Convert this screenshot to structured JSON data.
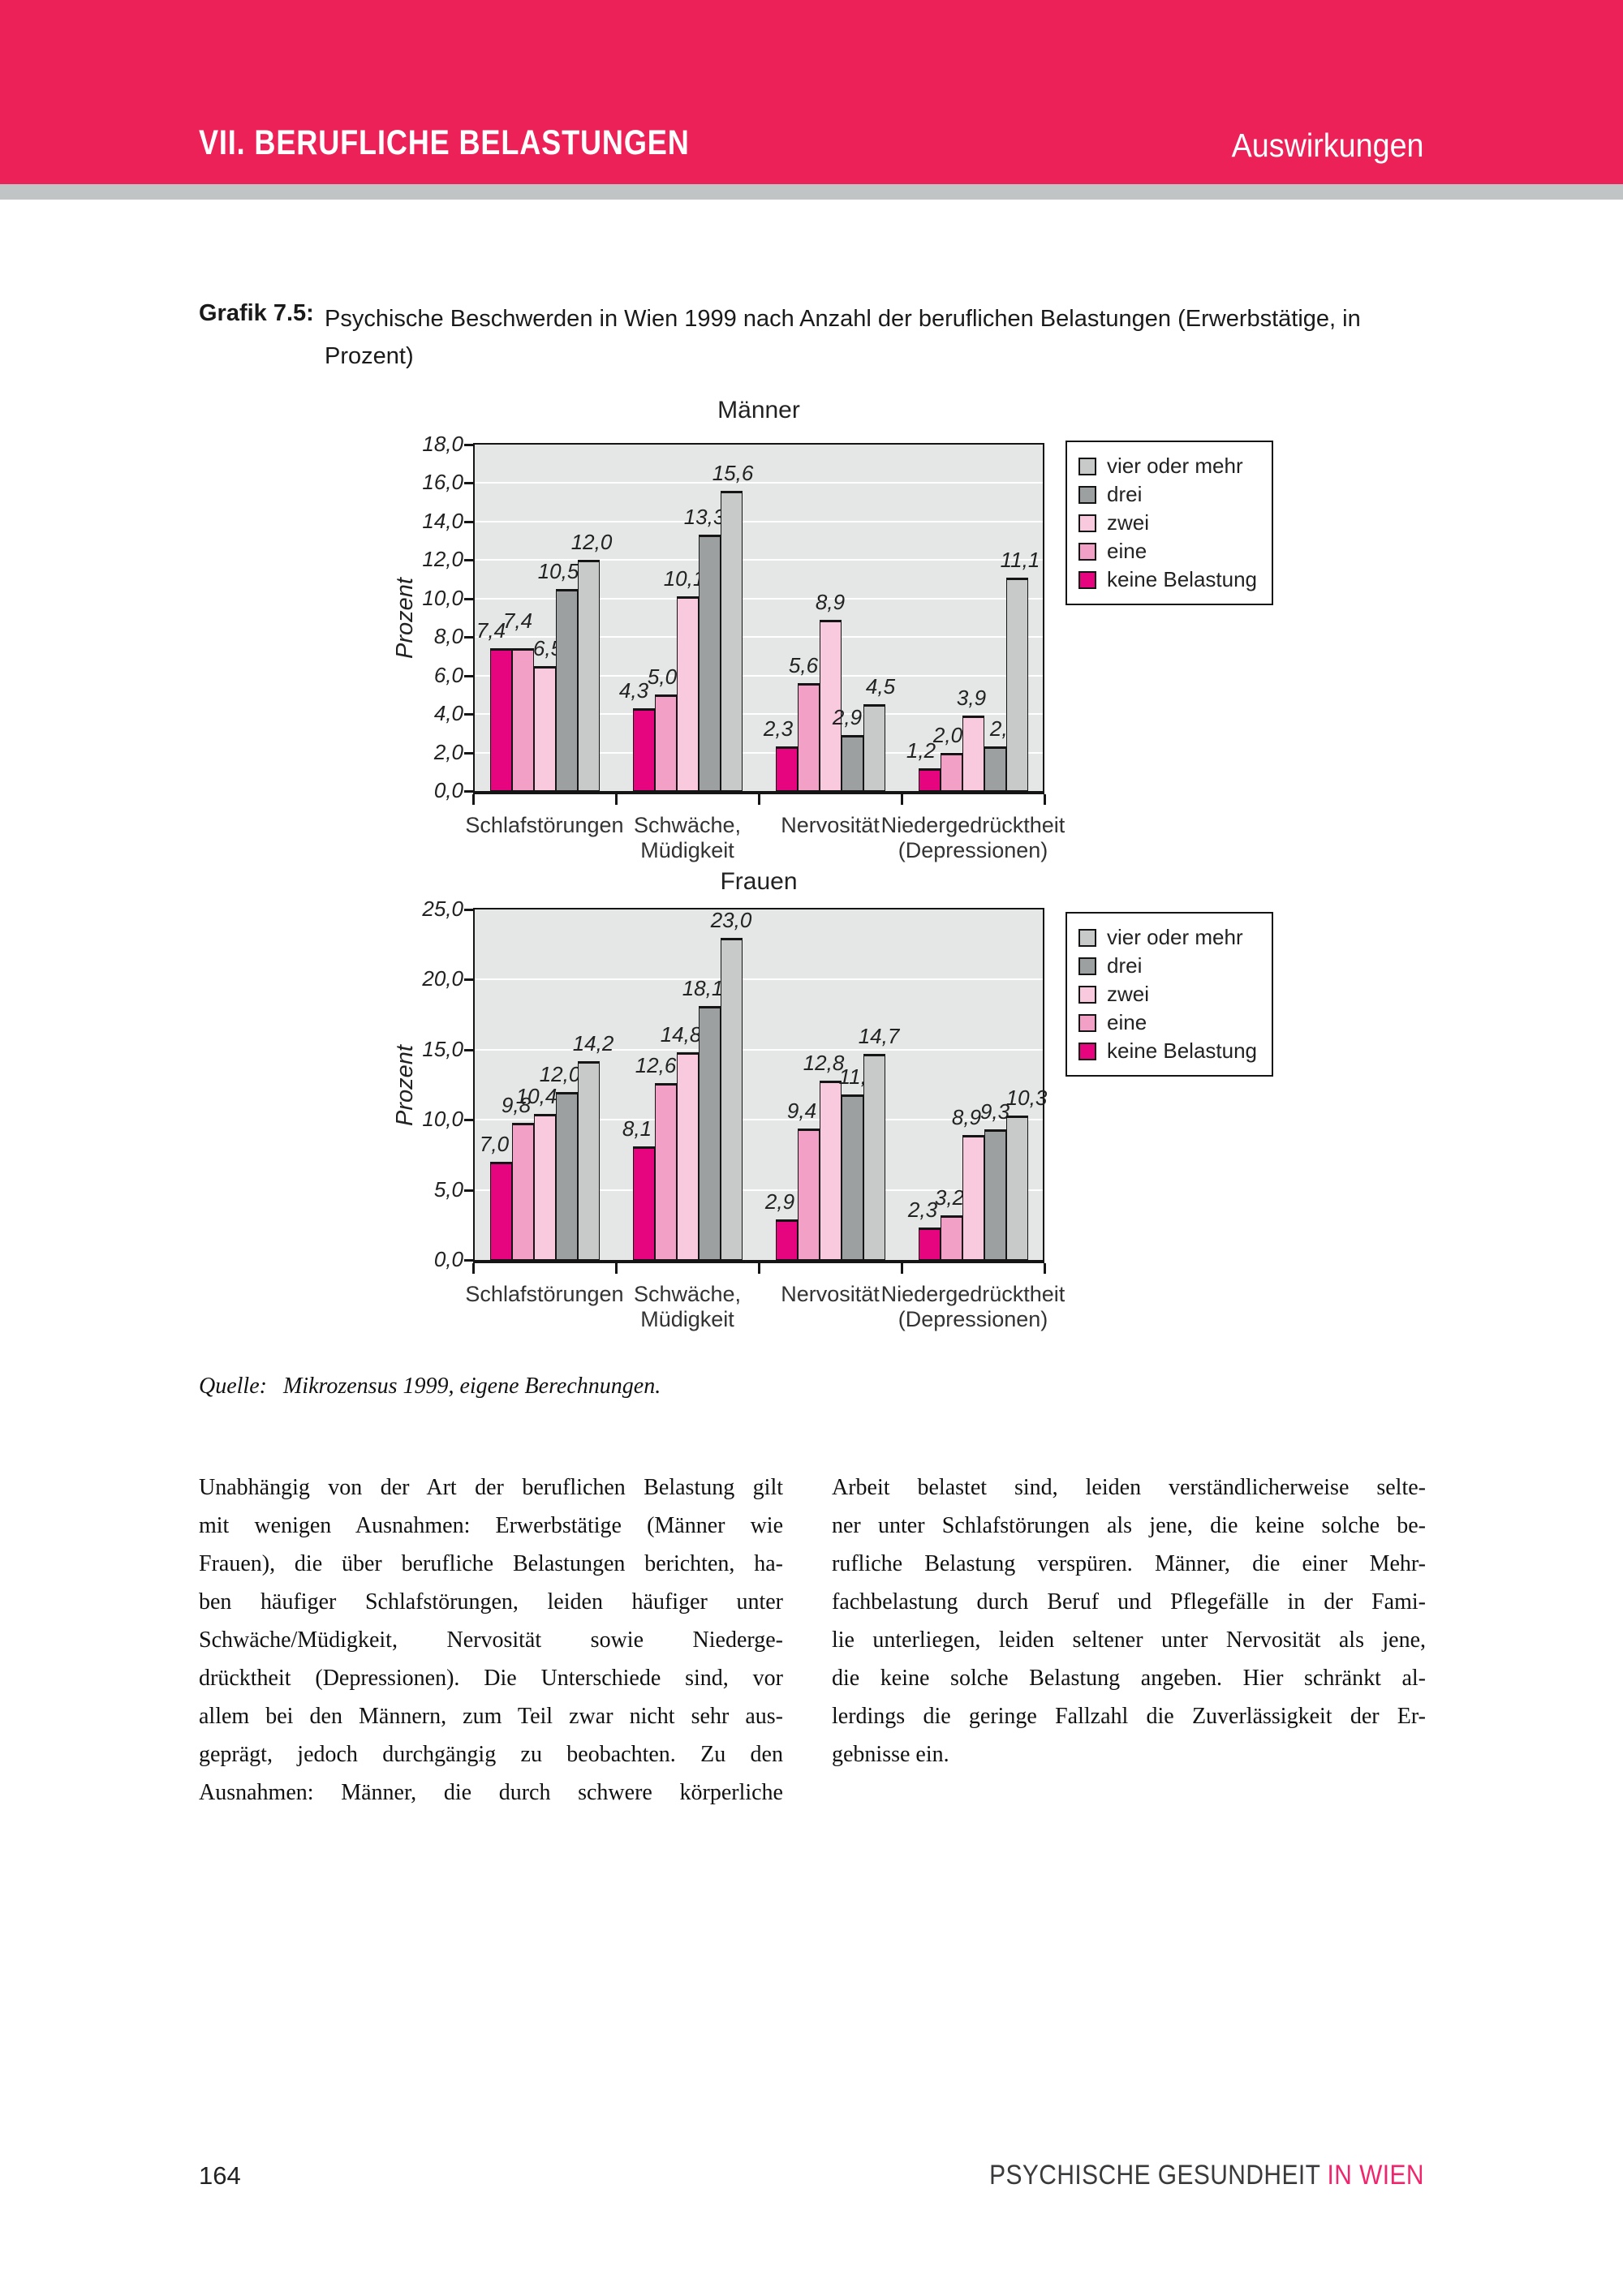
{
  "header": {
    "left": "VII. BERUFLICHE BELASTUNGEN",
    "right": "Auswirkungen"
  },
  "figure": {
    "label": "Grafik 7.5:",
    "caption_lines": [
      "Psychische Beschwerden in Wien 1999 nach Anzahl der beruflichen Belastungen (Erwerbstätige, in",
      "Prozent)"
    ]
  },
  "colors": {
    "accent_pink": "#EC2158",
    "footer_wien_pink": "#F1256E",
    "divider_gray": "#C0C4C5",
    "plot_background": "#E5E6E6",
    "grid_line": "#FFFFFF",
    "series": {
      "keine Belastung": "#E6057F",
      "eine": "#F2A0C6",
      "zwei": "#F9C9DE",
      "drei": "#9DA0A0",
      "vier oder mehr": "#C8CACA"
    }
  },
  "legend": {
    "items": [
      {
        "label": "vier oder mehr"
      },
      {
        "label": "drei"
      },
      {
        "label": "zwei"
      },
      {
        "label": "eine"
      },
      {
        "label": "keine Belastung"
      }
    ]
  },
  "chart_data": [
    {
      "type": "bar",
      "title": "Männer",
      "ylabel": "Prozent",
      "ylim": [
        0,
        18
      ],
      "ytick_step": 2,
      "grid": "horizontal-white",
      "legend_position": "right-top",
      "categories": [
        "Schlafstörungen",
        "Schwäche, Müdigkeit",
        "Nervosität",
        "Niedergedrücktheit (Depressionen)"
      ],
      "category_lines": [
        [
          "Schlafstörungen"
        ],
        [
          "Schwäche,",
          "Müdigkeit"
        ],
        [
          "Nervosität"
        ],
        [
          "Niedergedrücktheit",
          "(Depressionen)"
        ]
      ],
      "series": [
        {
          "name": "keine Belastung",
          "values": [
            7.4,
            4.3,
            2.3,
            1.2
          ]
        },
        {
          "name": "eine",
          "values": [
            7.4,
            5.0,
            5.6,
            2.0
          ]
        },
        {
          "name": "zwei",
          "values": [
            6.5,
            10.1,
            8.9,
            3.9
          ]
        },
        {
          "name": "drei",
          "values": [
            10.5,
            13.3,
            2.9,
            2.3
          ]
        },
        {
          "name": "vier oder mehr",
          "values": [
            12.0,
            15.6,
            4.5,
            11.1
          ]
        }
      ]
    },
    {
      "type": "bar",
      "title": "Frauen",
      "ylabel": "Prozent",
      "ylim": [
        0,
        25
      ],
      "ytick_step": 5,
      "grid": "horizontal-white",
      "legend_position": "right-top",
      "categories": [
        "Schlafstörungen",
        "Schwäche, Müdigkeit",
        "Nervosität",
        "Niedergedrücktheit (Depressionen)"
      ],
      "category_lines": [
        [
          "Schlafstörungen"
        ],
        [
          "Schwäche,",
          "Müdigkeit"
        ],
        [
          "Nervosität"
        ],
        [
          "Niedergedrücktheit",
          "(Depressionen)"
        ]
      ],
      "series": [
        {
          "name": "keine Belastung",
          "values": [
            7.0,
            8.1,
            2.9,
            2.3
          ]
        },
        {
          "name": "eine",
          "values": [
            9.8,
            12.6,
            9.4,
            3.2
          ]
        },
        {
          "name": "zwei",
          "values": [
            10.4,
            14.8,
            12.8,
            8.9
          ]
        },
        {
          "name": "drei",
          "values": [
            12.0,
            18.1,
            11.8,
            9.3
          ]
        },
        {
          "name": "vier oder mehr",
          "values": [
            14.2,
            23.0,
            14.7,
            10.3
          ]
        }
      ]
    }
  ],
  "source": {
    "label": "Quelle:",
    "text": "Mikrozensus 1999, eigene Berechnungen."
  },
  "body": {
    "left_lines": [
      "Unabhängig von der Art der beruflichen Belastung gilt",
      "mit wenigen Ausnahmen: Erwerbstätige (Männer wie",
      "Frauen), die über berufliche Belastungen berichten, ha-",
      "ben häufiger Schlafstörungen, leiden häufiger unter",
      "Schwäche/Müdigkeit, Nervosität sowie Niederge-",
      "drücktheit (Depressionen). Die Unterschiede sind, vor",
      "allem bei den Männern, zum Teil zwar nicht sehr aus-",
      "geprägt, jedoch durchgängig zu beobachten. Zu den",
      "Ausnahmen: Männer, die durch schwere körperliche"
    ],
    "right_lines": [
      "Arbeit belastet sind, leiden verständlicherweise selte-",
      "ner unter Schlafstörungen als jene, die keine solche be-",
      "rufliche Belastung verspüren. Männer, die einer Mehr-",
      "fachbelastung durch Beruf und Pflegefälle in der Fami-",
      "lie unterliegen, leiden seltener unter Nervosität als jene,",
      "die keine solche Belastung angeben. Hier schränkt al-",
      "lerdings die geringe Fallzahl die Zuverlässigkeit der Er-",
      "gebnisse ein."
    ]
  },
  "footer": {
    "page": "164",
    "right_black": "PSYCHISCHE GESUNDHEIT",
    "right_pink": "IN WIEN"
  }
}
